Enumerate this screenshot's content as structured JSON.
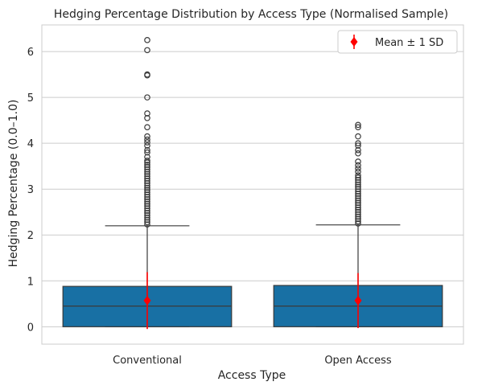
{
  "chart_data": {
    "type": "box",
    "title": "Hedging Percentage Distribution by Access Type (Normalised Sample)",
    "xlabel": "Access Type",
    "ylabel": "Hedging Percentage (0.0–1.0)",
    "ylim": [
      -0.38,
      6.58
    ],
    "yticks": [
      0,
      1,
      2,
      3,
      4,
      5,
      6
    ],
    "grid": true,
    "legend": {
      "placement": "top-right",
      "label": "Mean ± 1 SD",
      "marker": "diamond",
      "color": "#ff0000"
    },
    "box_color": "#1870a4",
    "categories": [
      "Conventional",
      "Open Access"
    ],
    "boxes": [
      {
        "name": "Conventional",
        "q1": 0.0,
        "median": 0.45,
        "q3": 0.88,
        "whisker_low": 0.0,
        "whisker_high": 2.2,
        "mean": 0.57,
        "sd": 0.62,
        "outliers": [
          2.23,
          2.28,
          2.33,
          2.38,
          2.43,
          2.48,
          2.53,
          2.58,
          2.63,
          2.68,
          2.73,
          2.78,
          2.83,
          2.88,
          2.93,
          2.98,
          3.03,
          3.08,
          3.13,
          3.18,
          3.23,
          3.28,
          3.33,
          3.38,
          3.43,
          3.48,
          3.53,
          3.58,
          3.62,
          3.7,
          3.8,
          3.85,
          3.95,
          4.02,
          4.08,
          4.15,
          4.35,
          4.55,
          4.65,
          5.0,
          5.48,
          5.5,
          6.03,
          6.25
        ]
      },
      {
        "name": "Open Access",
        "q1": 0.0,
        "median": 0.45,
        "q3": 0.9,
        "whisker_low": 0.0,
        "whisker_high": 2.22,
        "mean": 0.57,
        "sd": 0.6,
        "outliers": [
          2.25,
          2.3,
          2.35,
          2.4,
          2.45,
          2.5,
          2.55,
          2.6,
          2.65,
          2.7,
          2.75,
          2.8,
          2.85,
          2.9,
          2.95,
          3.0,
          3.05,
          3.1,
          3.15,
          3.2,
          3.25,
          3.3,
          3.38,
          3.45,
          3.52,
          3.6,
          3.78,
          3.85,
          3.95,
          4.0,
          4.15,
          4.35,
          4.4
        ]
      }
    ]
  }
}
